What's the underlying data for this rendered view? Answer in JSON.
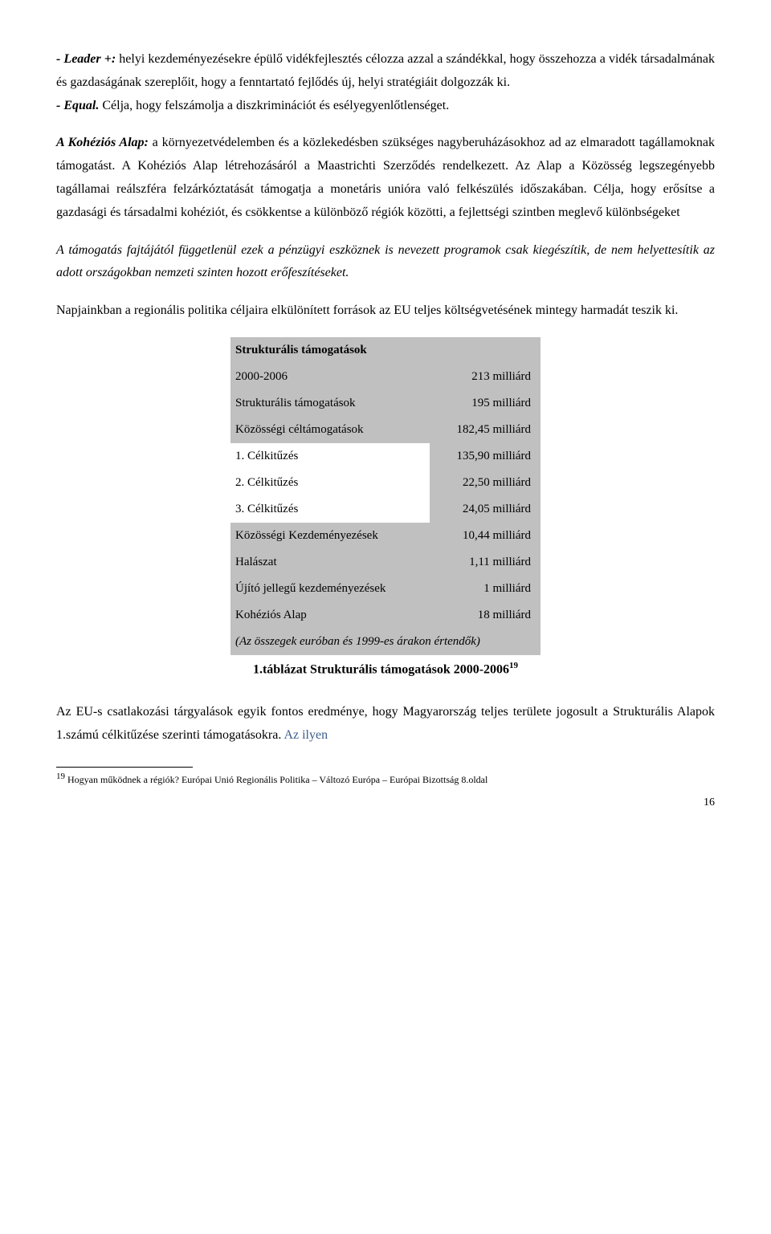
{
  "para1": {
    "leader_label": "- Leader +:",
    "leader_text": " helyi kezdeményezésekre épülő vidékfejlesztés célozza azzal a szándékkal, hogy összehozza a vidék társadalmának és gazdaságának szereplőit, hogy a fenntartató fejlődés új, helyi stratégiáit dolgozzák ki.",
    "equal_label": "- Equal.",
    "equal_text": " Célja, hogy felszámolja a diszkriminációt és esélyegyenlőtlenséget."
  },
  "para2": {
    "kohezios_label": "A Kohéziós Alap:",
    "kohezios_text": " a környezetvédelemben és a közlekedésben szükséges nagyberuházásokhoz ad az elmaradott tagállamoknak támogatást. A Kohéziós Alap létrehozásáról a Maastrichti Szerződés rendelkezett. Az Alap a Közösség legszegényebb tagállamai reálszféra felzárkóztatását támogatja a monetáris unióra való felkészülés időszakában. Célja, hogy erősítse a gazdasági és társadalmi kohéziót, és csökkentse a különböző régiók közötti, a fejlettségi szintben meglevő különbségeket"
  },
  "para3": "A támogatás fajtájától függetlenül ezek a pénzügyi eszköznek is nevezett programok csak kiegészítik, de nem helyettesítik az adott országokban nemzeti szinten hozott erőfeszítéseket.",
  "para4": "Napjainkban a regionális politika céljaira elkülönített források az EU teljes költségvetésének mintegy harmadát teszik ki.",
  "table": {
    "header": "Strukturális támogatások",
    "rows": [
      {
        "label": "2000-2006",
        "value": "213 milliárd",
        "section": true,
        "indent": false
      },
      {
        "label": "Strukturális támogatások",
        "value": "195 milliárd",
        "section": true,
        "indent": false
      },
      {
        "label": "Közösségi céltámogatások",
        "value": "182,45 milliárd",
        "section": true,
        "indent": false
      },
      {
        "label": "1. Célkitűzés",
        "value": "135,90 milliárd",
        "section": false,
        "indent": true
      },
      {
        "label": "2. Célkitűzés",
        "value": "22,50 milliárd",
        "section": false,
        "indent": true
      },
      {
        "label": "3. Célkitűzés",
        "value": "24,05 milliárd",
        "section": false,
        "indent": true
      },
      {
        "label": "Közösségi Kezdeményezések",
        "value": "10,44 milliárd",
        "section": true,
        "indent": false
      },
      {
        "label": "Halászat",
        "value": "1,11 milliárd",
        "section": true,
        "indent": false
      },
      {
        "label": "Újító jellegű kezdeményezések",
        "value": "1 milliárd",
        "section": true,
        "indent": false
      },
      {
        "label": "Kohéziós Alap",
        "value": "18 milliárd",
        "section": true,
        "indent": false
      }
    ],
    "footer": "(Az összegek euróban és 1999-es árakon értendők)"
  },
  "caption": {
    "text": "1.táblázat Strukturális támogatások 2000-2006",
    "sup": "19"
  },
  "para5": {
    "pre": "Az EU-s csatlakozási tárgyalások egyik fontos eredménye, hogy Magyarország teljes területe jogosult a Strukturális Alapok 1.számú célkitűzése szerinti támogatásokra. ",
    "colored": "Az ilyen",
    "color": "#3b5e8a"
  },
  "footnote": {
    "sup": "19",
    "text": " Hogyan működnek a régiók? Európai Unió Regionális Politika – Változó Európa – Európai Bizottság 8.oldal"
  },
  "page_number": "16"
}
